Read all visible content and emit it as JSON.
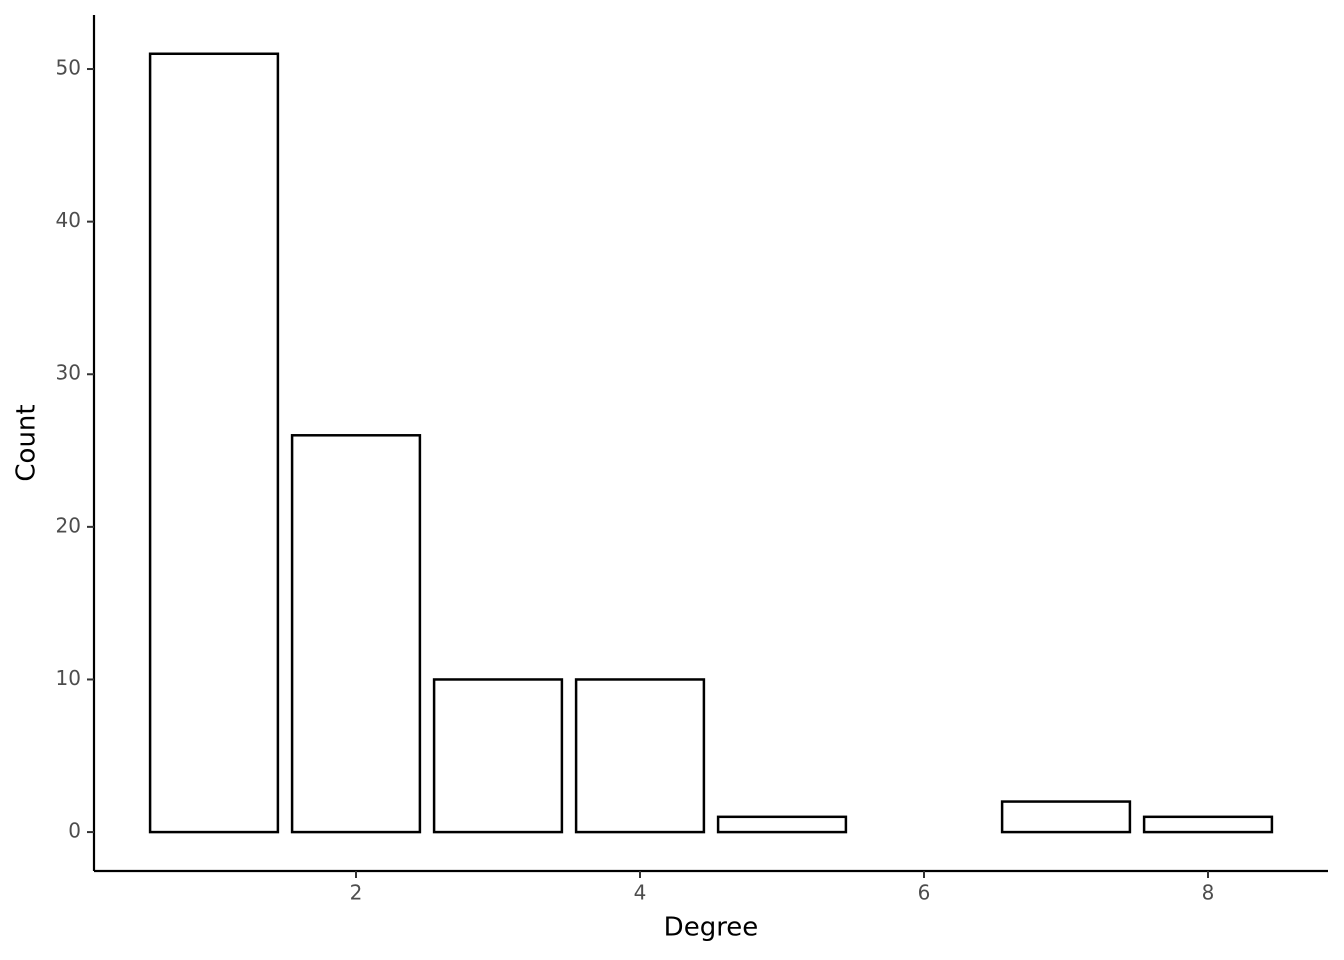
{
  "chart_data": {
    "type": "bar",
    "x": [
      1,
      2,
      3,
      4,
      5,
      7,
      8
    ],
    "values": [
      51,
      26,
      10,
      10,
      1,
      2,
      1
    ],
    "color": "#ffffff",
    "edge_color": "#000000",
    "xlabel": "Degree",
    "ylabel": "Count",
    "xlim": [
      0.155,
      8.845
    ],
    "xticks": [
      2,
      4,
      6,
      8
    ],
    "ylim": [
      -2.55,
      53.54
    ],
    "yticks": [
      0,
      10,
      20,
      30,
      40,
      50
    ],
    "grid": false
  }
}
